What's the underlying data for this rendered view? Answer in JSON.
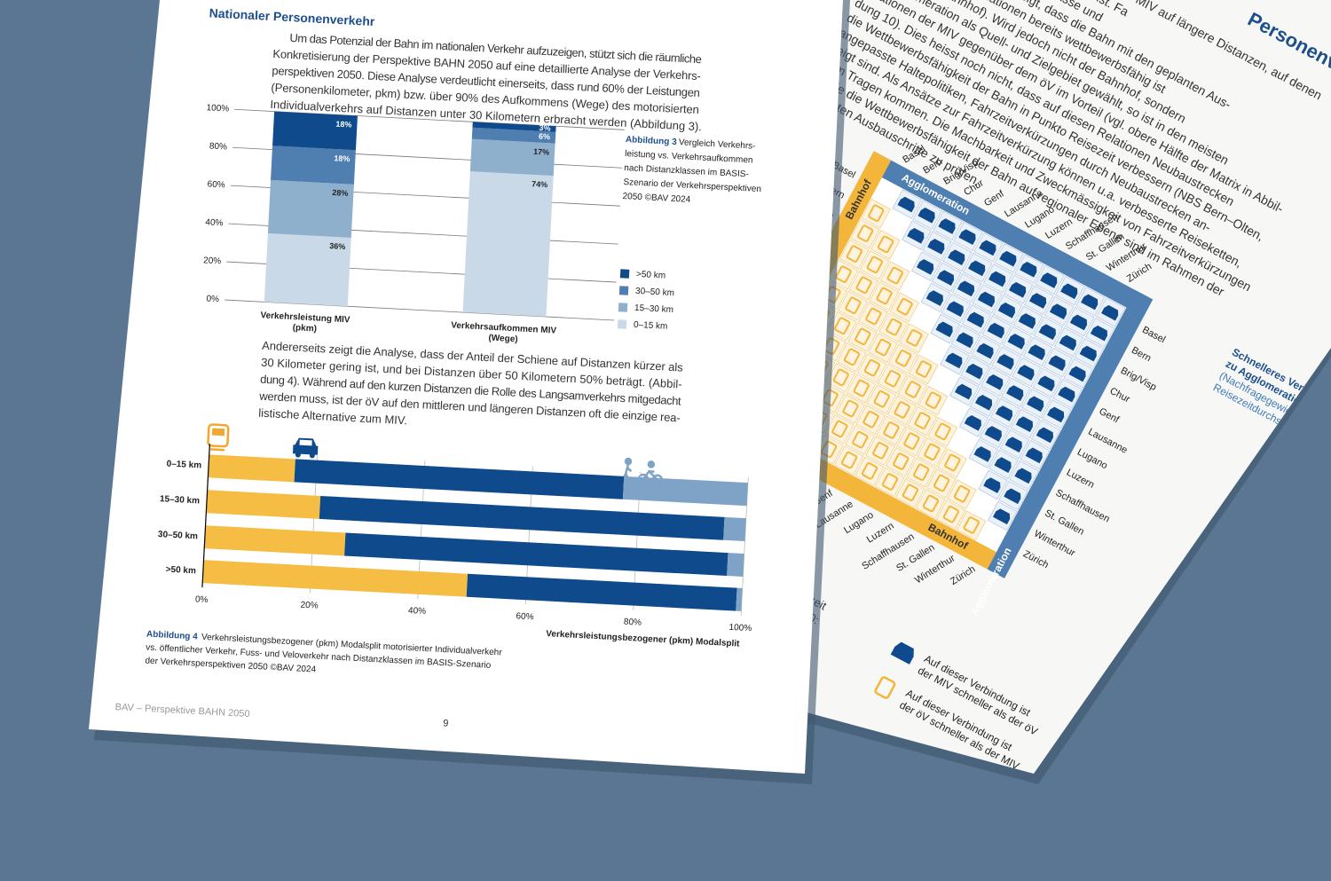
{
  "document": {
    "front": {
      "heading": "Nationaler Personenverkehr",
      "paragraph1": [
        "Um das Potenzial der Bahn im nationalen Verkehr aufzuzeigen, stützt sich die räumliche",
        "Konkretisierung der Perspektive BAHN 2050 auf eine detaillierte Analyse der Verkehrs-",
        "perspektiven 2050. Diese Analyse verdeutlicht einerseits, dass rund 60% der Leistungen",
        "(Personenkilometer, pkm) bzw. über 90% des Aufkommens (Wege) des motorisierten",
        "Individualverkehrs auf Distanzen unter 30 Kilometern erbracht werden (Abbildung 3)."
      ],
      "caption3": {
        "label": "Abbildung 3",
        "lines": [
          "Vergleich Verkehrs-",
          "leistung vs. Verkehrsaufkommen",
          "nach Distanzklassen im BASIS-",
          "Szenario der Verkehrsperspektiven",
          "2050 ©BAV 2024"
        ]
      },
      "paragraph2": [
        "Andererseits zeigt die Analyse, dass der Anteil der Schiene auf Distanzen kürzer als",
        "30 Kilometer gering ist, und bei Distanzen über 50 Kilometern 50% beträgt. (Abbil-",
        "dung 4). Während auf den kurzen Distanzen die Rolle des Langsamverkehrs mitgedacht",
        "werden muss, ist der öV auf den mittleren und längeren Distanzen oft die einzige rea-",
        "listische Alternative zum MIV."
      ],
      "caption4": {
        "label": "Abbildung 4",
        "lines": [
          "Verkehrsleistungsbezogener (pkm) Modalsplit motorisierter Individualverkehr",
          "vs. öffentlicher Verkehr, Fuss- und Veloverkehr nach Distanzklassen im BASIS-Szenario",
          "der Verkehrsperspektiven 2050 ©BAV 2024"
        ]
      },
      "footer": "BAV – Perspektive BAHN 2050",
      "page_number": "9"
    },
    "back": {
      "heading": "Personenverkehr",
      "paragraph": [
        "Im Fernverkehr ist die Bahn gegenüber dem MIV auf längere Distanzen, auf denen",
        "der MIV heute nicht wettbewerbsfähig ist. Fa",
        "Reisezeitvergleich zwischen Strasse und",
        "Schiene in Abbildung 10 zeigt, dass die Bahn mit den geplanten Aus-",
        "bauten auf vielen Relationen bereits wettbewerbsfähig ist",
        "(Bahnhof zu Bahnhof). Wird jedoch nicht der Bahnhof, sondern",
        "die Agglomeration als Quell- und Zielgebiet gewählt, so ist in den meisten",
        "Relationen der MIV gegenüber dem öV im Vorteil (vgl. obere Hälfte der Matrix in Abbil-",
        "dung 10). Dies heisst noch nicht, dass auf diesen Relationen Neubaustrecken",
        "die Wettbewerbsfähigkeit der Bahn in Punkto Reisezeit verbessern (NBS Bern–Olten,",
        "angepasste Haltepolitiken, Fahrzeitverkürzungen durch Neubaustrecken an-",
        "zeigt sind. Als Ansätze zur Fahrzeitverkürzung können u.a. verbesserte Reiseketten,",
        "zum Tragen kommen. Die Machbarkeit und Zweckmässigkeit von Fahrzeitverkürzungen",
        "sowie die Wettbewerbsfähigkeit der Bahn auf regionaler Ebene sind im Rahmen der",
        "nächsten Ausbauschritte zu prüfen."
      ],
      "matrix": {
        "side_a": "Bahnhof",
        "side_b": "Agglomeration",
        "cities": [
          "Basel",
          "Bern",
          "Brig/Visp",
          "Chur",
          "Genf",
          "Lausanne",
          "Lugano",
          "Luzern",
          "Schaffhausen",
          "St. Gallen",
          "Winterthur",
          "Zürich"
        ]
      },
      "legend": {
        "title": [
          "Schnelleres Verkehrsmittel",
          "zu Agglomeration"
        ],
        "subtitle": [
          "(Nachfragegewichteter",
          "Reisezeitdurchschnitt)"
        ],
        "car": [
          "Auf dieser Verbindung ist",
          "der MIV schneller als der öV"
        ],
        "train": [
          "Auf dieser Verbindung ist",
          "der öV schneller als der MIV"
        ]
      },
      "fragments": [
        "zeit",
        "ktiven 2050:"
      ]
    }
  },
  "chart_data": [
    {
      "type": "bar",
      "stacked": true,
      "categories": [
        "Verkehrsleistung MIV\n(pkm)",
        "Verkehrsaufkommen MIV\n(Wege)"
      ],
      "series": [
        {
          "name": "0–15 km",
          "color": "#c9d9e7",
          "values": [
            36,
            74
          ],
          "value_labels": [
            "36%",
            "74%"
          ]
        },
        {
          "name": "15–30 km",
          "color": "#8fb0cd",
          "values": [
            28,
            17
          ],
          "value_labels": [
            "28%",
            "17%"
          ]
        },
        {
          "name": "30–50 km",
          "color": "#4f7eb0",
          "values": [
            18,
            6
          ],
          "value_labels": [
            "18%",
            "6%"
          ]
        },
        {
          "name": ">50 km",
          "color": "#0e4a8c",
          "values": [
            18,
            3
          ],
          "value_labels": [
            "18%",
            "3%"
          ]
        }
      ],
      "ylim": [
        0,
        100
      ],
      "yticks": [
        {
          "value": 0,
          "label": "0%"
        },
        {
          "value": 20,
          "label": "20%"
        },
        {
          "value": 40,
          "label": "40%"
        },
        {
          "value": 60,
          "label": "60%"
        },
        {
          "value": 80,
          "label": "80%"
        },
        {
          "value": 100,
          "label": "100%"
        }
      ],
      "grid": true,
      "legend": "right"
    },
    {
      "type": "bar",
      "orientation": "horizontal",
      "stacked": true,
      "categories": [
        "0–15 km",
        "15–30 km",
        "30–50 km",
        ">50 km"
      ],
      "series": [
        {
          "color": "#f6bd45",
          "values": [
            16,
            21,
            26,
            49
          ]
        },
        {
          "color": "#0e4a8c",
          "values": [
            61,
            75,
            71,
            50
          ]
        },
        {
          "color": "#7fa3c6",
          "values": [
            23,
            4,
            3,
            1
          ]
        }
      ],
      "xlim": [
        0,
        100
      ],
      "xticks": [
        {
          "value": 0,
          "label": "0%"
        },
        {
          "value": 20,
          "label": "20%"
        },
        {
          "value": 40,
          "label": "40%"
        },
        {
          "value": 60,
          "label": "60%"
        },
        {
          "value": 80,
          "label": "80%"
        },
        {
          "value": 100,
          "label": "100%"
        }
      ],
      "xlabel": "Verkehrsleistungsbezogener (pkm) Modalsplit",
      "grid": true
    }
  ]
}
